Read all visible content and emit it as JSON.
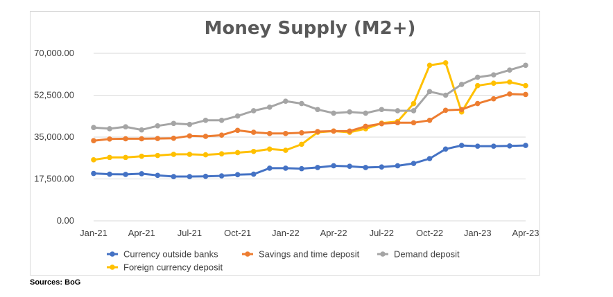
{
  "chart_data": {
    "type": "line",
    "title": "Money Supply (M2+)",
    "xlabel": "",
    "ylabel": "",
    "ylim": [
      0,
      70000
    ],
    "yticks": [
      "0.00",
      "17,500.00",
      "35,000.00",
      "52,500.00",
      "70,000.00"
    ],
    "ytick_values": [
      0,
      17500,
      35000,
      52500,
      70000
    ],
    "x": [
      "Jan-21",
      "Feb-21",
      "Mar-21",
      "Apr-21",
      "May-21",
      "Jun-21",
      "Jul-21",
      "Aug-21",
      "Sep-21",
      "Oct-21",
      "Nov-21",
      "Dec-21",
      "Jan-22",
      "Feb-22",
      "Mar-22",
      "Apr-22",
      "May-22",
      "Jun-22",
      "Jul-22",
      "Aug-22",
      "Sep-22",
      "Oct-22",
      "Nov-22",
      "Dec-22",
      "Jan-23",
      "Feb-23",
      "Mar-23",
      "Apr-23"
    ],
    "xtick_labels": [
      "Jan-21",
      "Apr-21",
      "Jul-21",
      "Oct-21",
      "Jan-22",
      "Apr-22",
      "Jul-22",
      "Oct-22",
      "Jan-23",
      "Apr-23"
    ],
    "grid": "horizontal",
    "legend": "bottom",
    "series": [
      {
        "name": "Currency outside banks",
        "color": "#4472c4",
        "values": [
          19800,
          19500,
          19400,
          19700,
          19000,
          18500,
          18500,
          18600,
          18800,
          19300,
          19500,
          22000,
          22000,
          21800,
          22300,
          23000,
          22800,
          22300,
          22500,
          23000,
          24000,
          26000,
          30000,
          31500,
          31200,
          31200,
          31300,
          31500
        ]
      },
      {
        "name": "Savings and time deposit",
        "color": "#ed7d31",
        "values": [
          33500,
          34200,
          34300,
          34300,
          34400,
          34500,
          35500,
          35300,
          35800,
          37800,
          37000,
          36500,
          36500,
          36800,
          37300,
          37500,
          37500,
          39500,
          40600,
          41000,
          41000,
          42000,
          46200,
          46500,
          49000,
          51000,
          53000,
          52800
        ]
      },
      {
        "name": "Demand deposit",
        "color": "#a5a5a5",
        "values": [
          39000,
          38500,
          39300,
          38000,
          39700,
          40700,
          40300,
          42000,
          42000,
          43800,
          46000,
          47500,
          50000,
          49000,
          46500,
          45000,
          45500,
          45000,
          46500,
          46000,
          46000,
          54000,
          52500,
          57000,
          60000,
          61000,
          63000,
          65000
        ]
      },
      {
        "name": "Foreign currency deposit",
        "color": "#ffc000",
        "values": [
          25500,
          26500,
          26500,
          27000,
          27300,
          27800,
          27800,
          27600,
          28000,
          28500,
          29000,
          30000,
          29500,
          32000,
          37000,
          37500,
          37000,
          38500,
          40800,
          41500,
          49000,
          65000,
          66000,
          45500,
          56500,
          57500,
          58000,
          56500
        ]
      }
    ]
  },
  "source_note": "Sources: BoG"
}
